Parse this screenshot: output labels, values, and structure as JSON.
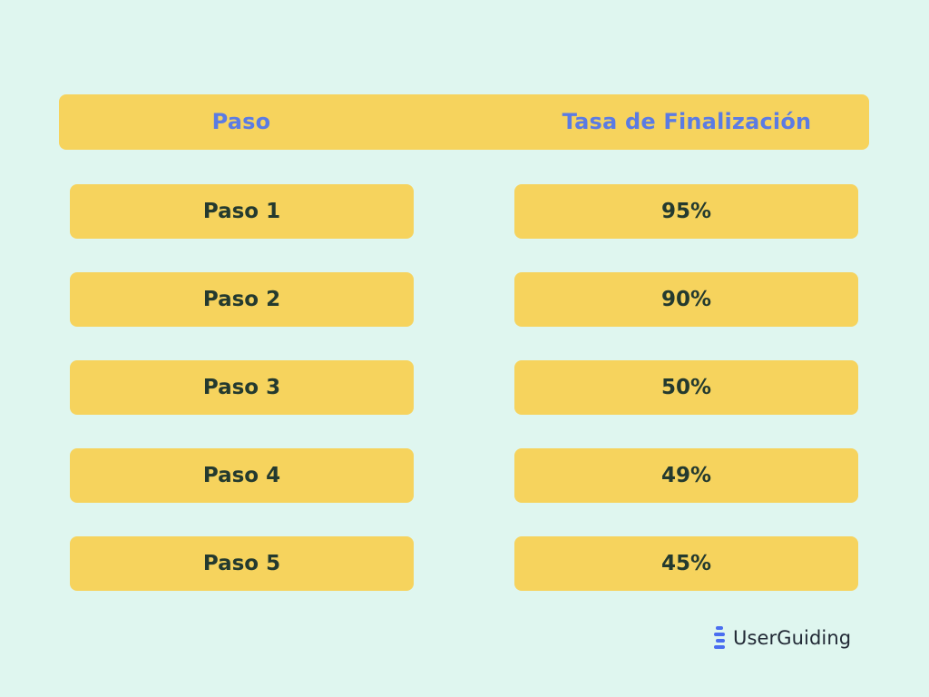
{
  "chart_data": {
    "type": "table",
    "columns": [
      "Paso",
      "Tasa de Finalización"
    ],
    "rows": [
      {
        "step": "Paso 1",
        "rate": "95%"
      },
      {
        "step": "Paso 2",
        "rate": "90%"
      },
      {
        "step": "Paso 3",
        "rate": "50%"
      },
      {
        "step": "Paso 4",
        "rate": "49%"
      },
      {
        "step": "Paso 5",
        "rate": "45%"
      }
    ],
    "values": [
      95,
      90,
      50,
      49,
      45
    ]
  },
  "brand": {
    "name": "UserGuiding",
    "icon": "userguiding-logo-icon"
  },
  "colors": {
    "background": "#dff6ef",
    "cell": "#f6d35d",
    "header_text": "#5b7be3",
    "cell_text": "#243a2f",
    "brand_accent": "#4a6ef0"
  }
}
